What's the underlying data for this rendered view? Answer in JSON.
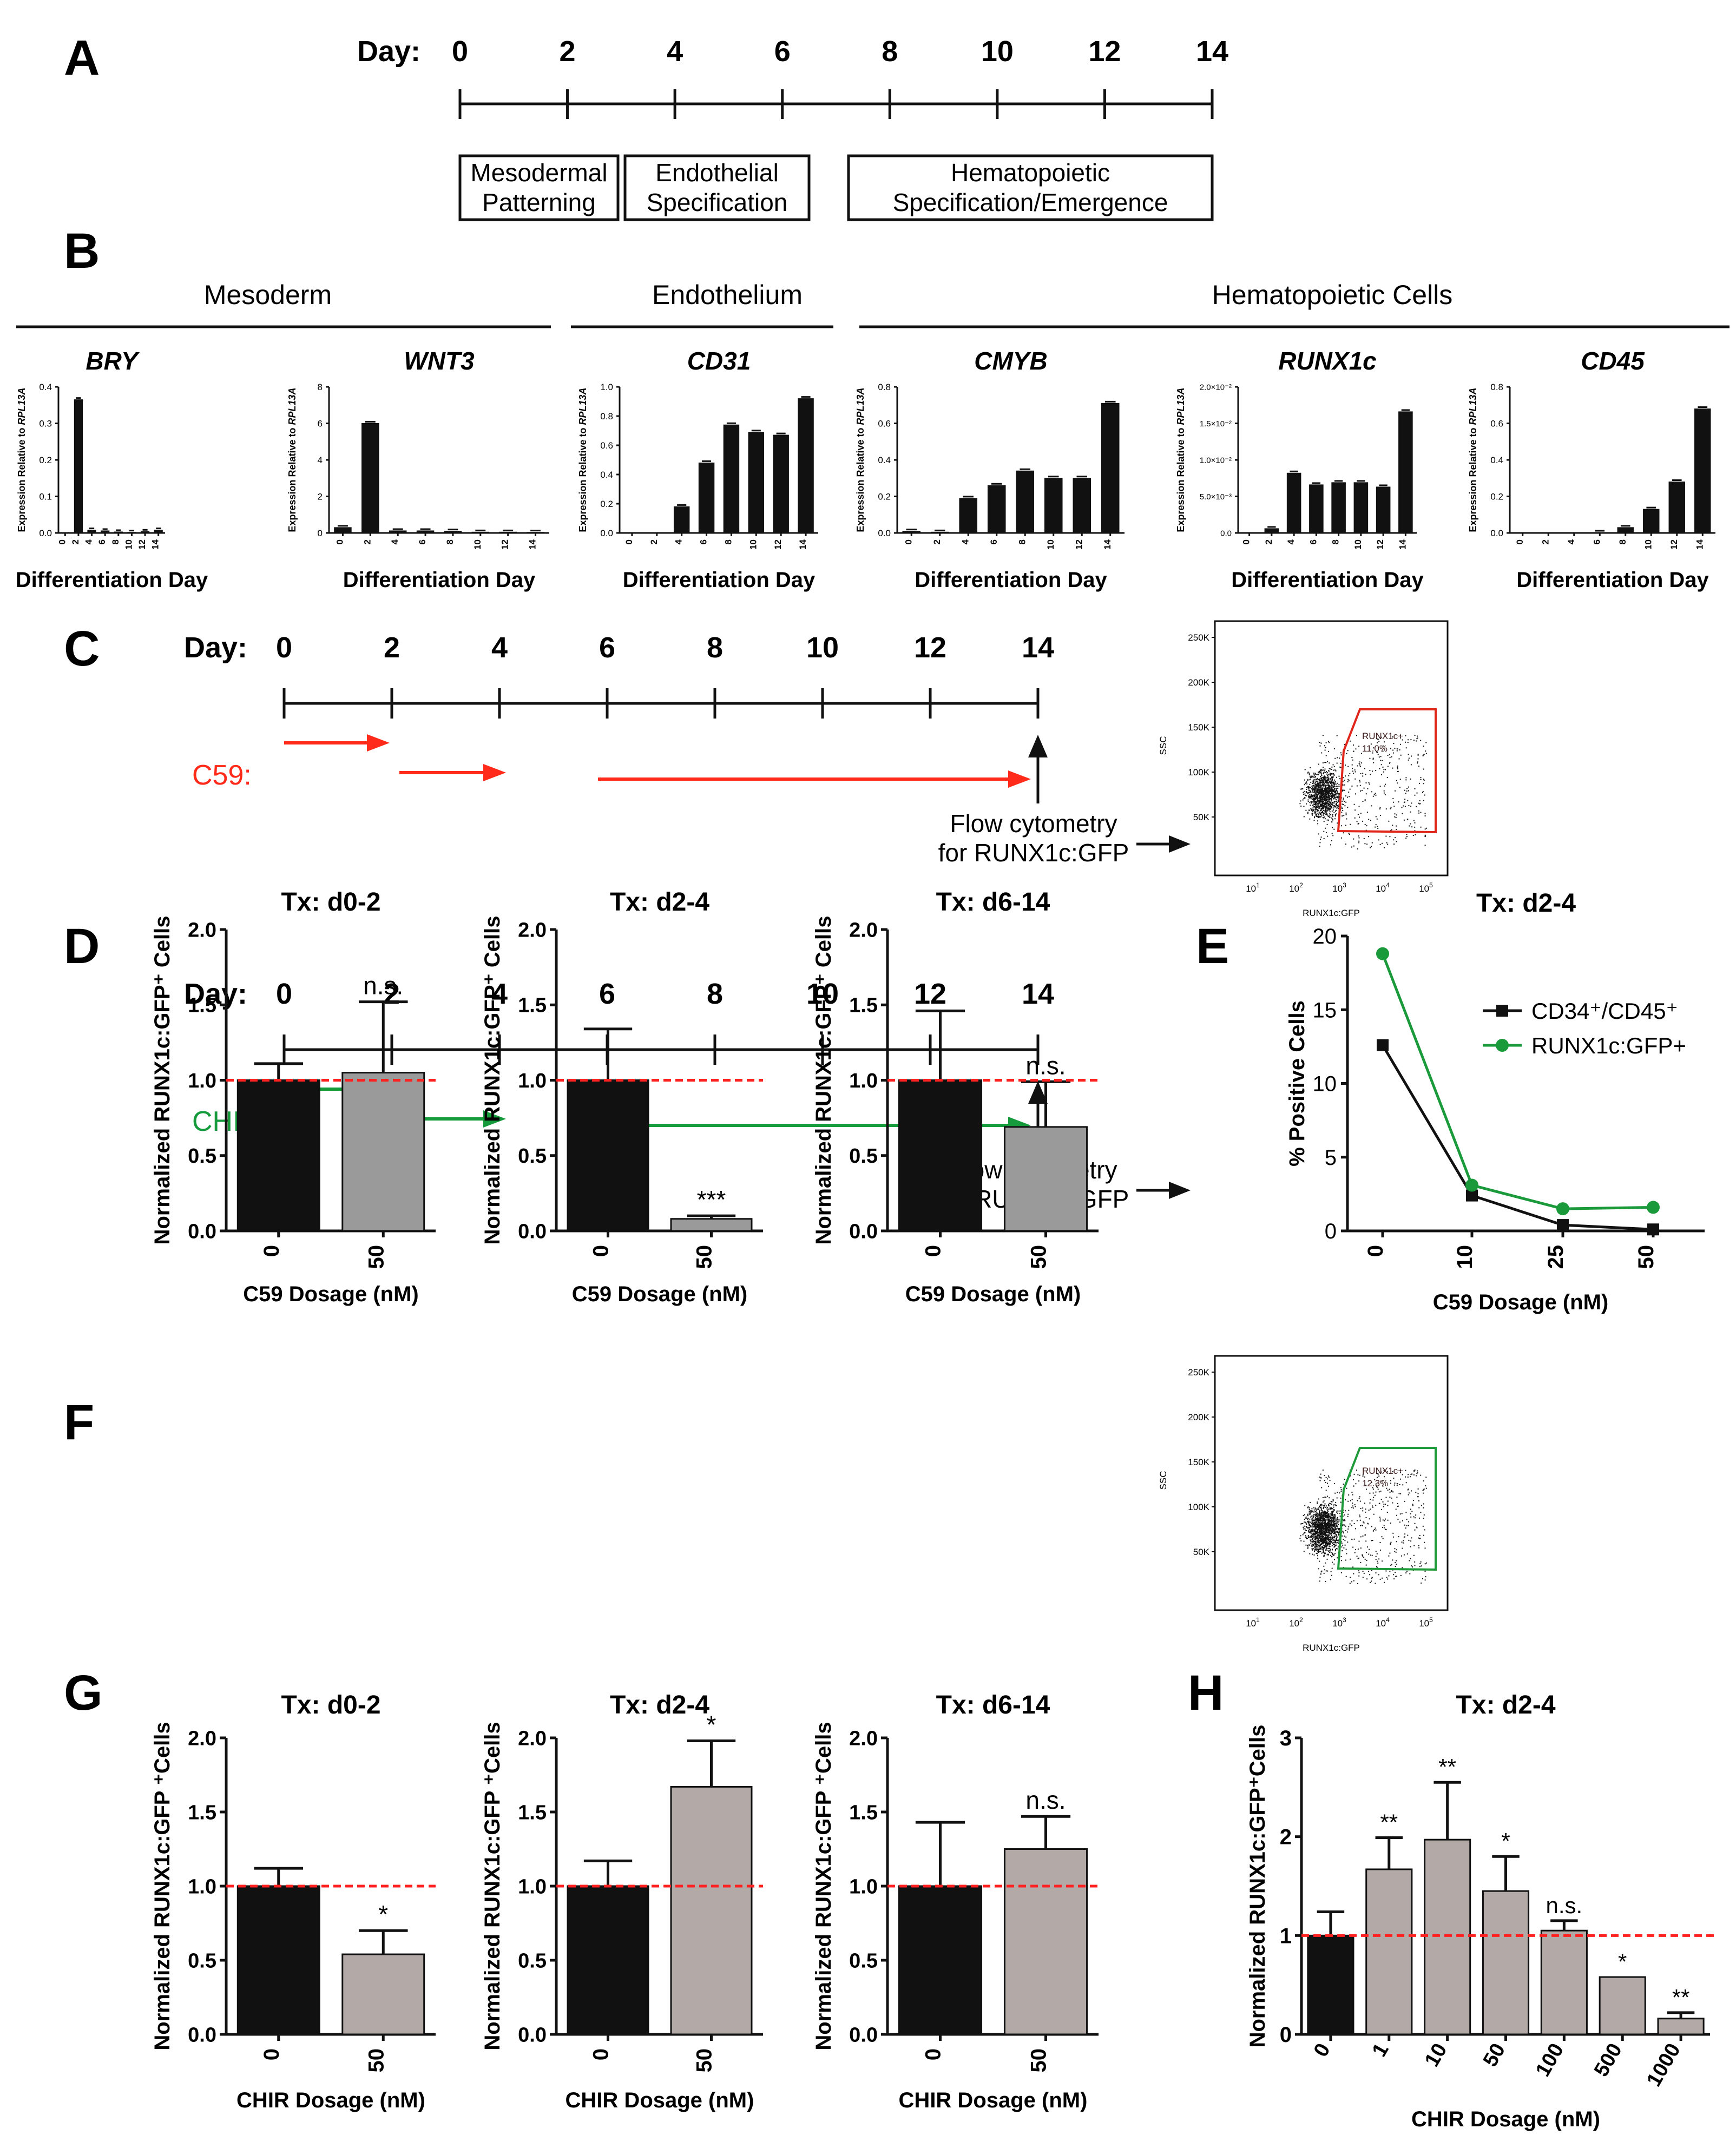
{
  "panel_labels": [
    "A",
    "B",
    "C",
    "D",
    "E",
    "F",
    "G",
    "H"
  ],
  "timeline_A": {
    "day_label": "Day:",
    "days": [
      "0",
      "2",
      "4",
      "6",
      "8",
      "10",
      "12",
      "14"
    ],
    "boxes": [
      {
        "line1": "Mesodermal",
        "line2": "Patterning"
      },
      {
        "line1": "Endothelial",
        "line2": "Specification"
      },
      {
        "line1": "Hematopoietic",
        "line2": "Specification/Emergence"
      }
    ]
  },
  "panel_B": {
    "groups": [
      "Mesoderm",
      "Endothelium",
      "Hematopoietic Cells"
    ],
    "ylabel_prefix": "Expression Relative to ",
    "ylabel_gene": "RPL13A",
    "xlabel": "Differentiation Day",
    "day_ticks": [
      "0",
      "2",
      "4",
      "6",
      "8",
      "10",
      "12",
      "14"
    ]
  },
  "timeline_C": {
    "day_label": "Day:",
    "days": [
      "0",
      "2",
      "4",
      "6",
      "8",
      "10",
      "12",
      "14"
    ],
    "drug": "C59:",
    "color": "#ff2a1a",
    "flow_line1": "Flow cytometry",
    "flow_line2": "for RUNX1c:GFP"
  },
  "flow_C": {
    "y_ticks": [
      "250K",
      "200K",
      "150K",
      "100K",
      "50K"
    ],
    "ylabel": "SSC",
    "xlabel": "RUNX1c:GFP",
    "gate_label": "RUNX1c+",
    "gate_value": "11.0%",
    "gate_color": "#e0261b"
  },
  "timeline_F": {
    "day_label": "Day:",
    "days": [
      "0",
      "2",
      "4",
      "6",
      "8",
      "10",
      "12",
      "14"
    ],
    "drug": "CHIR:",
    "color": "#159a3c",
    "flow_line1": "Flow cytometry",
    "flow_line2": "for RUNX1c:GFP"
  },
  "flow_F": {
    "y_ticks": [
      "250K",
      "200K",
      "150K",
      "100K",
      "50K"
    ],
    "ylabel": "SSC",
    "xlabel": "RUNX1c:GFP",
    "gate_label": "RUNX1c+",
    "gate_value": "12.3%",
    "gate_color": "#1f9a3a"
  },
  "colors": {
    "black_bar": "#111111",
    "gray_bar_D": "#9a9a9a",
    "gray_bar_G": "#b3aaa8",
    "dashed": "#ff2020",
    "green": "#1a9a3a"
  },
  "chart_data": [
    {
      "id": "B1",
      "type": "bar",
      "title": "BRY",
      "categories": [
        "0",
        "2",
        "4",
        "6",
        "8",
        "10",
        "12",
        "14"
      ],
      "values": [
        0.0,
        0.365,
        0.008,
        0.006,
        0.003,
        0.002,
        0.004,
        0.008
      ],
      "ylim": [
        0,
        0.4
      ],
      "yticks": [
        "0.0",
        "0.1",
        "0.2",
        "0.3",
        "0.4"
      ],
      "xlabel": "Differentiation Day",
      "ylabel": "Expression Relative to RPL13A"
    },
    {
      "id": "B2",
      "type": "bar",
      "title": "WNT3",
      "categories": [
        "0",
        "2",
        "4",
        "6",
        "8",
        "10",
        "12",
        "14"
      ],
      "values": [
        0.3,
        6.0,
        0.12,
        0.12,
        0.1,
        0.05,
        0.05,
        0.04
      ],
      "ylim": [
        0,
        8
      ],
      "yticks": [
        "0",
        "2",
        "4",
        "6",
        "8"
      ],
      "xlabel": "Differentiation Day",
      "ylabel": "Expression Relative to RPL13A"
    },
    {
      "id": "B3",
      "type": "bar",
      "title": "CD31",
      "categories": [
        "0",
        "2",
        "4",
        "6",
        "8",
        "10",
        "12",
        "14"
      ],
      "values": [
        0.0,
        0.0,
        0.18,
        0.48,
        0.74,
        0.69,
        0.67,
        0.92
      ],
      "ylim": [
        0,
        1.0
      ],
      "yticks": [
        "0.0",
        "0.2",
        "0.4",
        "0.6",
        "0.8",
        "1.0"
      ],
      "xlabel": "Differentiation Day",
      "ylabel": "Expression Relative to RPL13A"
    },
    {
      "id": "B4",
      "type": "bar",
      "title": "CMYB",
      "categories": [
        "0",
        "2",
        "4",
        "6",
        "8",
        "10",
        "12",
        "14"
      ],
      "values": [
        0.01,
        0.005,
        0.19,
        0.26,
        0.34,
        0.3,
        0.3,
        0.71
      ],
      "ylim": [
        0,
        0.8
      ],
      "yticks": [
        "0.0",
        "0.2",
        "0.4",
        "0.6",
        "0.8"
      ],
      "xlabel": "Differentiation Day",
      "ylabel": "Expression Relative to RPL13A"
    },
    {
      "id": "B5",
      "type": "bar",
      "title": "RUNX1c",
      "categories": [
        "0",
        "2",
        "4",
        "6",
        "8",
        "10",
        "12",
        "14"
      ],
      "values": [
        0.0,
        0.0006,
        0.0082,
        0.0066,
        0.0069,
        0.0069,
        0.0063,
        0.0166
      ],
      "ylim": [
        0,
        0.02
      ],
      "yticks": [
        "0.0",
        "5.0×10⁻³",
        "1.0×10⁻²",
        "1.5×10⁻²",
        "2.0×10⁻²"
      ],
      "xlabel": "Differentiation Day",
      "ylabel": "Expression Relative to RPL13A"
    },
    {
      "id": "B6",
      "type": "bar",
      "title": "CD45",
      "categories": [
        "0",
        "2",
        "4",
        "6",
        "8",
        "10",
        "12",
        "14"
      ],
      "values": [
        0.0,
        0.0,
        0.0,
        0.003,
        0.03,
        0.13,
        0.28,
        0.68
      ],
      "ylim": [
        0,
        0.8
      ],
      "yticks": [
        "0.0",
        "0.2",
        "0.4",
        "0.6",
        "0.8"
      ],
      "xlabel": "Differentiation Day",
      "ylabel": "Expression Relative to RPL13A"
    },
    {
      "id": "D1",
      "type": "bar",
      "title": "Tx: d0-2",
      "categories": [
        "0",
        "50"
      ],
      "values": [
        1.0,
        1.05
      ],
      "errors": [
        0.11,
        0.47
      ],
      "annotations": [
        "",
        "n.s."
      ],
      "ylim": [
        0,
        2.0
      ],
      "yticks": [
        "0.0",
        "0.5",
        "1.0",
        "1.5",
        "2.0"
      ],
      "xlabel": "C59 Dosage (nM)",
      "ylabel": "Normalized RUNX1c:GFP⁺ Cells",
      "reference_line": 1.0
    },
    {
      "id": "D2",
      "type": "bar",
      "title": "Tx: d2-4",
      "categories": [
        "0",
        "50"
      ],
      "values": [
        1.0,
        0.08
      ],
      "errors": [
        0.34,
        0.02
      ],
      "annotations": [
        "",
        "***"
      ],
      "ylim": [
        0,
        2.0
      ],
      "yticks": [
        "0.0",
        "0.5",
        "1.0",
        "1.5",
        "2.0"
      ],
      "xlabel": "C59 Dosage (nM)",
      "ylabel": "Normalized RUNX1c:GFP⁺ Cells",
      "reference_line": 1.0
    },
    {
      "id": "D3",
      "type": "bar",
      "title": "Tx: d6-14",
      "categories": [
        "0",
        "50"
      ],
      "values": [
        1.0,
        0.69
      ],
      "errors": [
        0.46,
        0.3
      ],
      "annotations": [
        "",
        "n.s."
      ],
      "ylim": [
        0,
        2.0
      ],
      "yticks": [
        "0.0",
        "0.5",
        "1.0",
        "1.5",
        "2.0"
      ],
      "xlabel": "C59 Dosage (nM)",
      "ylabel": "Normalized RUNX1c:GFP⁺ Cells",
      "reference_line": 1.0
    },
    {
      "id": "E",
      "type": "line",
      "title": "Tx: d2-4",
      "categories": [
        "0",
        "10",
        "25",
        "50"
      ],
      "series": [
        {
          "name": "CD34⁺/CD45⁺",
          "values": [
            12.6,
            2.4,
            0.4,
            0.1
          ]
        },
        {
          "name": "RUNX1c:GFP+",
          "values": [
            18.8,
            3.1,
            1.5,
            1.6
          ]
        }
      ],
      "ylim": [
        0,
        20
      ],
      "yticks": [
        "0",
        "5",
        "10",
        "15",
        "20"
      ],
      "xlabel": "C59 Dosage (nM)",
      "ylabel": "% Positive Cells",
      "legend": "top-right"
    },
    {
      "id": "G1",
      "type": "bar",
      "title": "Tx: d0-2",
      "categories": [
        "0",
        "50"
      ],
      "values": [
        1.0,
        0.54
      ],
      "errors": [
        0.12,
        0.16
      ],
      "annotations": [
        "",
        "*"
      ],
      "ylim": [
        0,
        2.0
      ],
      "yticks": [
        "0.0",
        "0.5",
        "1.0",
        "1.5",
        "2.0"
      ],
      "xlabel": "CHIR Dosage (nM)",
      "ylabel": "Normalized RUNX1c:GFP ⁺Cells",
      "reference_line": 1.0
    },
    {
      "id": "G2",
      "type": "bar",
      "title": "Tx: d2-4",
      "categories": [
        "0",
        "50"
      ],
      "values": [
        1.0,
        1.67
      ],
      "errors": [
        0.17,
        0.31
      ],
      "annotations": [
        "",
        "*"
      ],
      "ylim": [
        0,
        2.0
      ],
      "yticks": [
        "0.0",
        "0.5",
        "1.0",
        "1.5",
        "2.0"
      ],
      "xlabel": "CHIR Dosage (nM)",
      "ylabel": "Normalized RUNX1c:GFP ⁺Cells",
      "reference_line": 1.0
    },
    {
      "id": "G3",
      "type": "bar",
      "title": "Tx: d6-14",
      "categories": [
        "0",
        "50"
      ],
      "values": [
        1.0,
        1.25
      ],
      "errors": [
        0.43,
        0.22
      ],
      "annotations": [
        "",
        "n.s."
      ],
      "ylim": [
        0,
        2.0
      ],
      "yticks": [
        "0.0",
        "0.5",
        "1.0",
        "1.5",
        "2.0"
      ],
      "xlabel": "CHIR Dosage (nM)",
      "ylabel": "Normalized RUNX1c:GFP ⁺Cells",
      "reference_line": 1.0
    },
    {
      "id": "H",
      "type": "bar",
      "title": "Tx: d2-4",
      "categories": [
        "0",
        "1",
        "10",
        "50",
        "100",
        "500",
        "1000"
      ],
      "values": [
        1.0,
        1.67,
        1.97,
        1.45,
        1.05,
        0.58,
        0.16
      ],
      "errors": [
        0.24,
        0.32,
        0.58,
        0.35,
        0.1,
        0.0,
        0.06
      ],
      "annotations": [
        "",
        "**",
        "**",
        "*",
        "n.s.",
        "*",
        "**"
      ],
      "ylim": [
        0,
        3
      ],
      "yticks": [
        "0",
        "1",
        "2",
        "3"
      ],
      "xlabel": "CHIR Dosage (nM)",
      "ylabel": "Normalized RUNX1c:GFP⁺Cells",
      "reference_line": 1.0
    }
  ]
}
